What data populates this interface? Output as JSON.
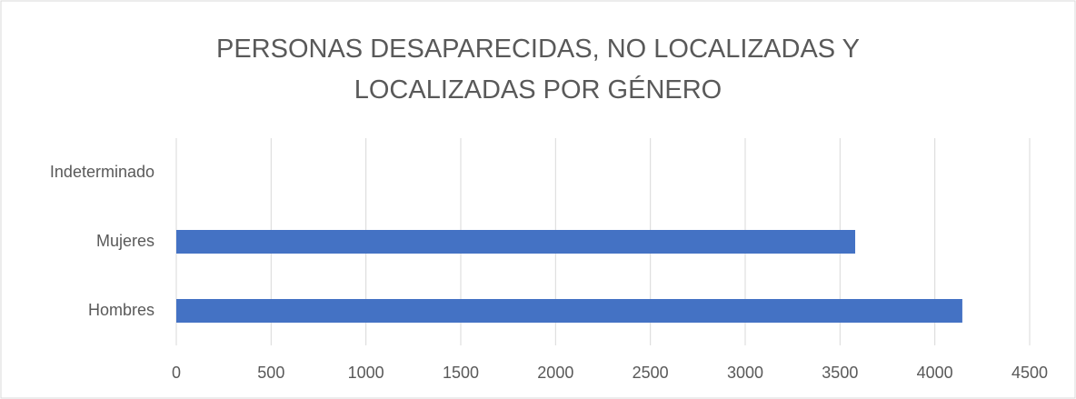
{
  "chart_data": {
    "type": "barh",
    "title": "PERSONAS DESAPARECIDAS, NO LOCALIZADAS Y LOCALIZADAS POR GÉNERO",
    "categories": [
      "Indeterminado",
      "Mujeres",
      "Hombres"
    ],
    "values": [
      0,
      3580,
      4145
    ],
    "color": "#4472c4",
    "xlim": [
      0,
      4500
    ],
    "xticks": [
      0,
      500,
      1000,
      1500,
      2000,
      2500,
      3000,
      3500,
      4000,
      4500
    ],
    "grid": true
  }
}
